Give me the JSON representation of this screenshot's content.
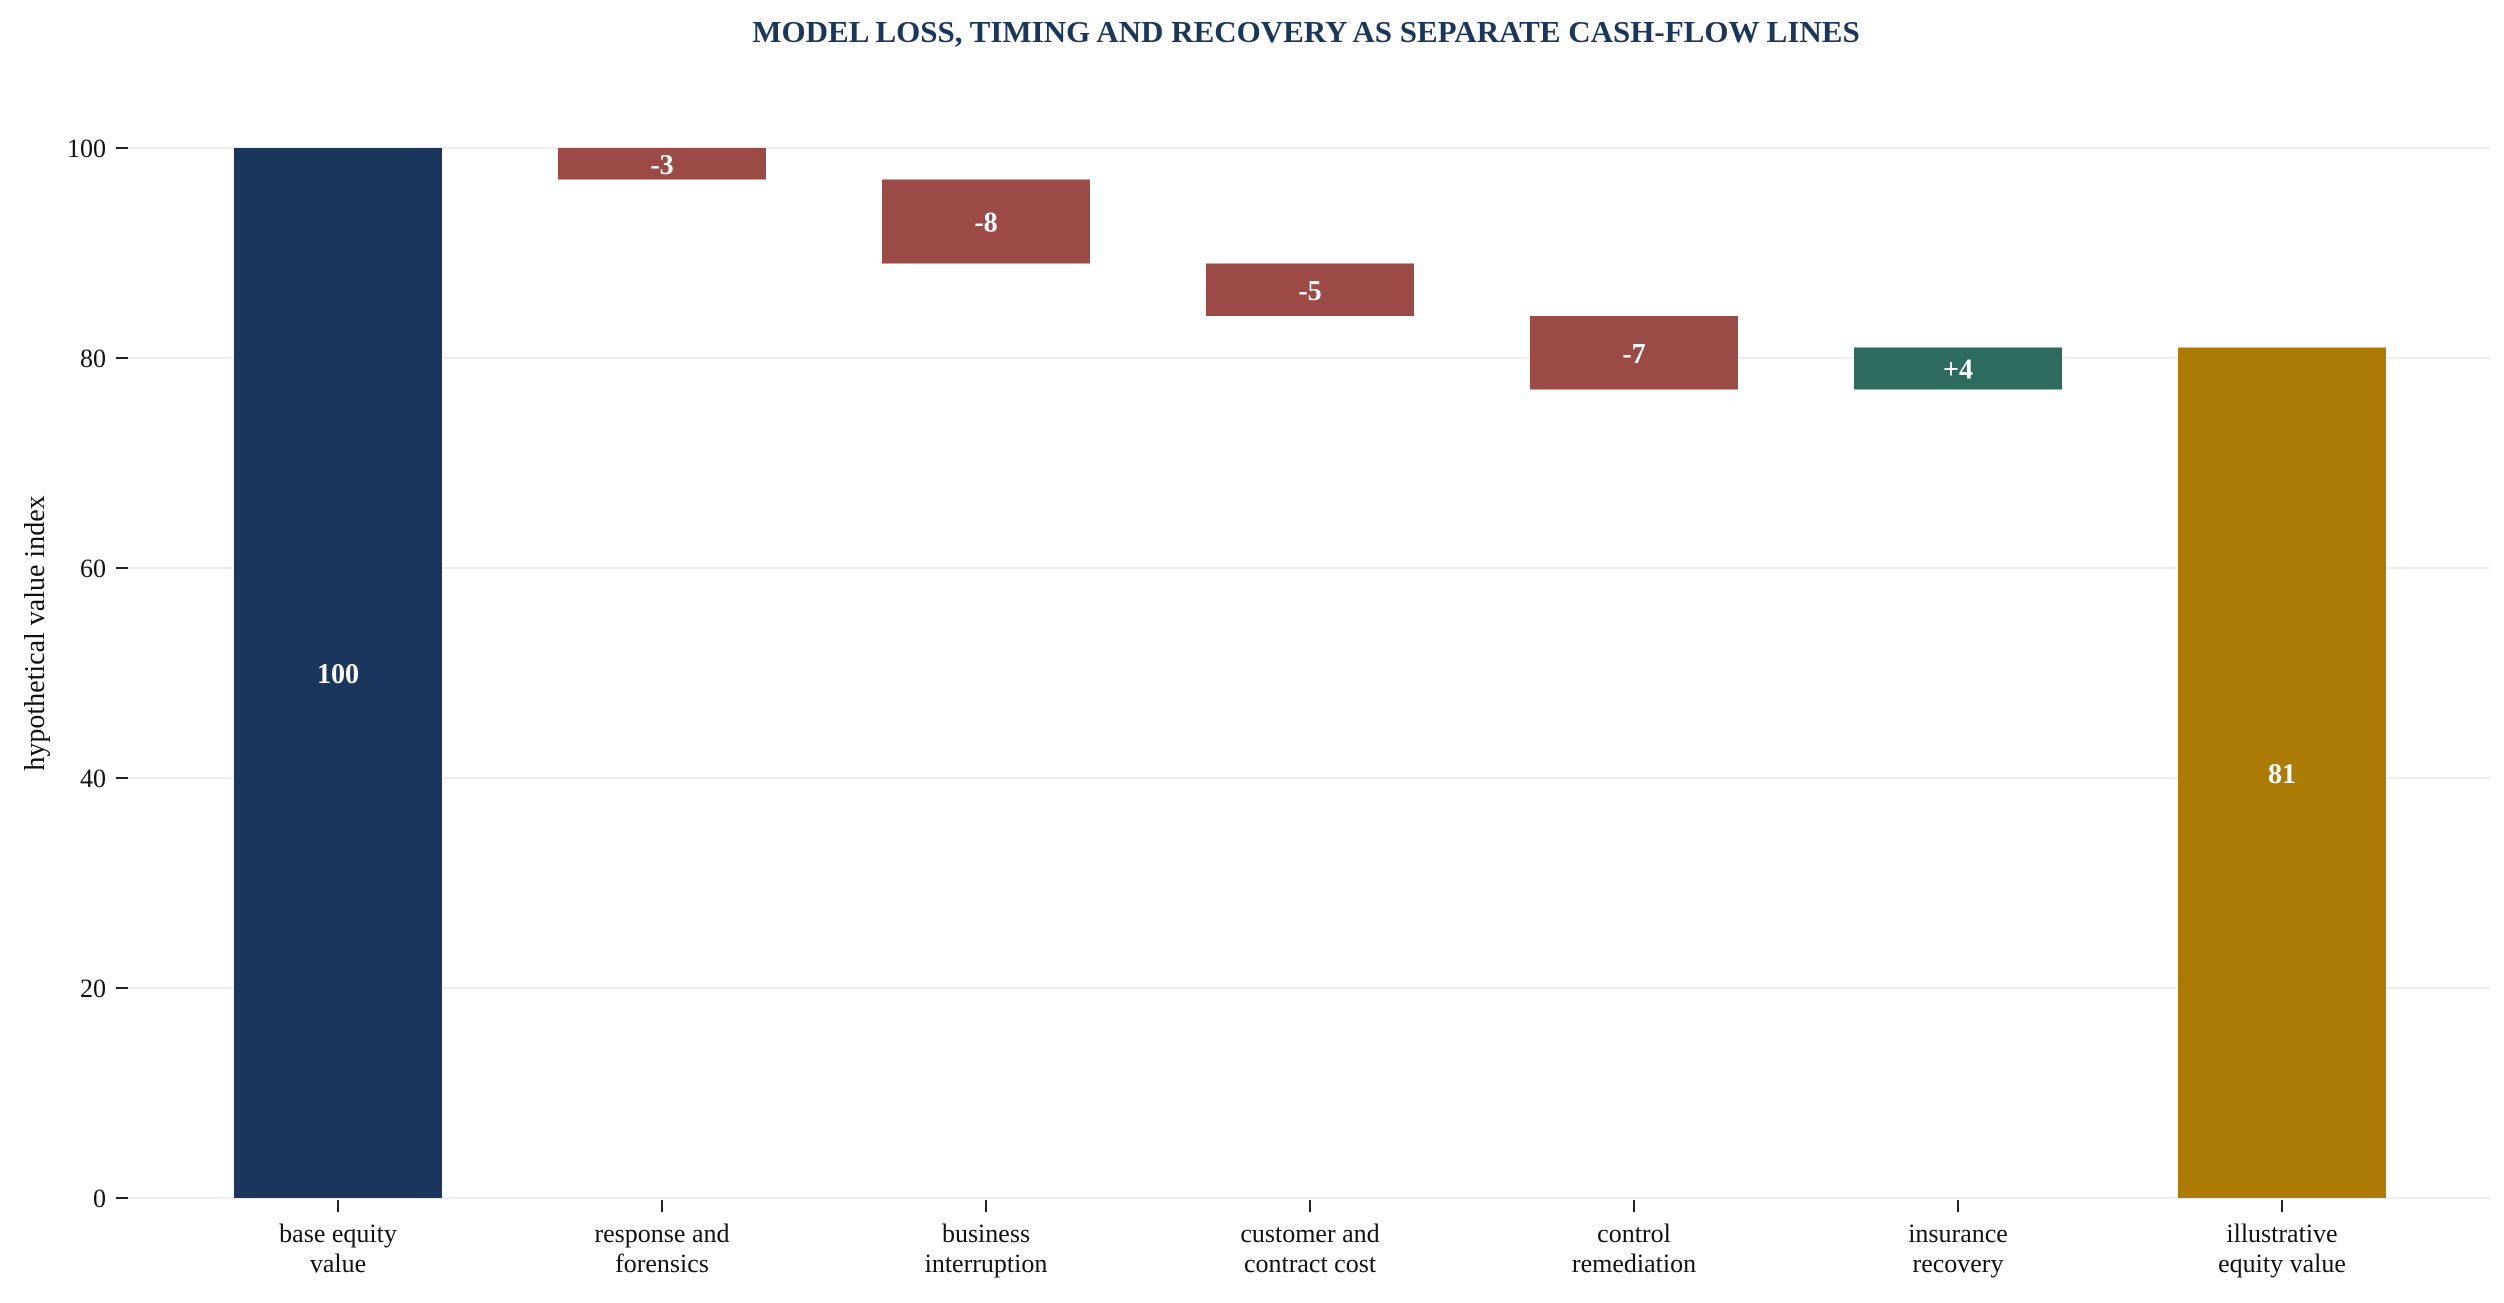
{
  "chart_data": {
    "type": "bar",
    "subtype": "waterfall",
    "title": "MODEL LOSS, TIMING AND RECOVERY AS SEPARATE CASH-FLOW LINES",
    "ylabel": "hypothetical value index",
    "xlabel": "",
    "ylim": [
      0,
      100
    ],
    "yticks": [
      0,
      20,
      40,
      60,
      80,
      100
    ],
    "grid": "horizontal",
    "categories": [
      [
        "base equity",
        "value"
      ],
      [
        "response and",
        "forensics"
      ],
      [
        "business",
        "interruption"
      ],
      [
        "customer and",
        "contract cost"
      ],
      [
        "control",
        "remediation"
      ],
      [
        "insurance",
        "recovery"
      ],
      [
        "illustrative",
        "equity value"
      ]
    ],
    "steps": [
      {
        "kind": "total",
        "start": 0,
        "end": 100,
        "label": "100"
      },
      {
        "kind": "decrease",
        "start": 100,
        "end": 97,
        "label": "-3"
      },
      {
        "kind": "decrease",
        "start": 97,
        "end": 89,
        "label": "-8"
      },
      {
        "kind": "decrease",
        "start": 89,
        "end": 84,
        "label": "-5"
      },
      {
        "kind": "decrease",
        "start": 84,
        "end": 77,
        "label": "-7"
      },
      {
        "kind": "increase",
        "start": 77,
        "end": 81,
        "label": "+4"
      },
      {
        "kind": "total",
        "start": 0,
        "end": 81,
        "label": "81"
      }
    ],
    "colors": {
      "base": "#1a365d",
      "decrease": "#9c4a46",
      "increase": "#2e6b5f",
      "final": "#ab7b04",
      "title": "#1a365d",
      "grid": "#e8e8e8"
    }
  }
}
